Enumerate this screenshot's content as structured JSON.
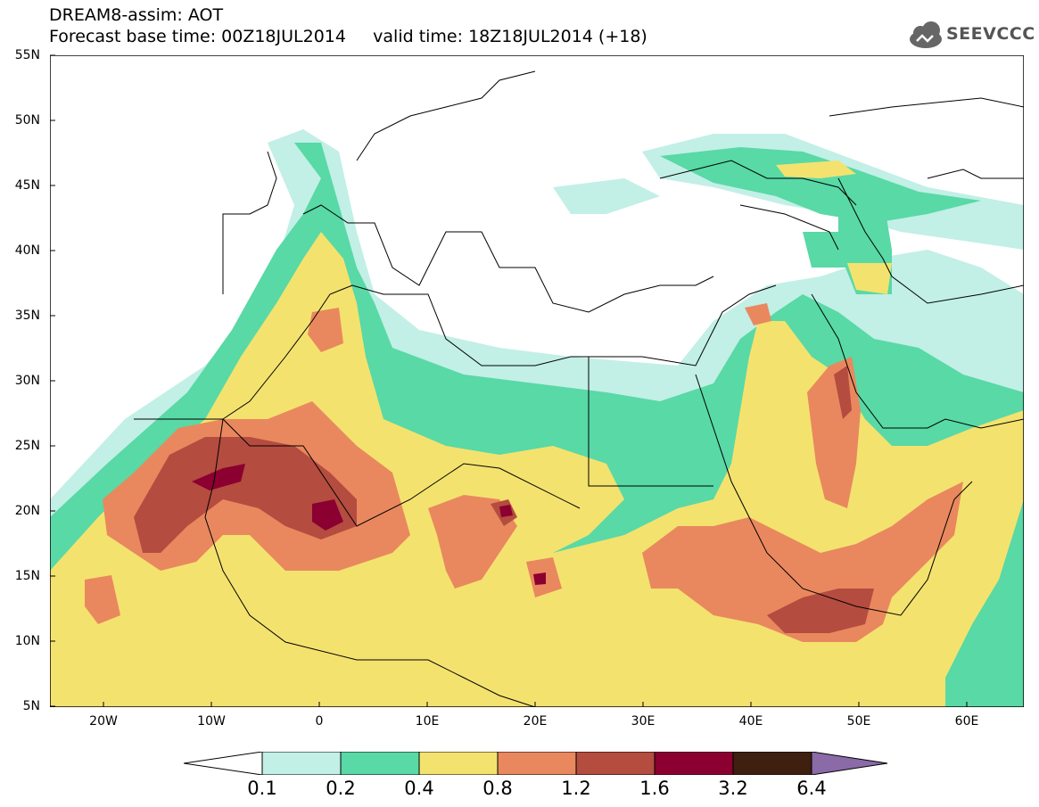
{
  "title": {
    "line1": "DREAM8-assim: AOT",
    "line2": "Forecast base time: 00Z18JUL2014     valid time: 18Z18JUL2014 (+18)"
  },
  "logo": {
    "text": "SEEVCCC",
    "icon": "cloud-icon"
  },
  "map": {
    "lat_labels": [
      "55N",
      "50N",
      "45N",
      "40N",
      "35N",
      "30N",
      "25N",
      "20N",
      "15N",
      "10N",
      "5N"
    ],
    "lon_labels": [
      "20W",
      "10W",
      "0",
      "10E",
      "20E",
      "30E",
      "40E",
      "50E",
      "60E"
    ],
    "lat_range": [
      5,
      55
    ],
    "lon_range": [
      -25,
      65
    ]
  },
  "legend": {
    "levels": [
      "0.1",
      "0.2",
      "0.4",
      "0.8",
      "1.2",
      "1.6",
      "3.2",
      "6.4"
    ],
    "colors": [
      "#c2efe6",
      "#58d9a6",
      "#f4e26f",
      "#e9885e",
      "#b44c40",
      "#8b0030",
      "#3e1f10"
    ],
    "under_color": "#ffffff",
    "over_color": "#8b6aa8"
  }
}
